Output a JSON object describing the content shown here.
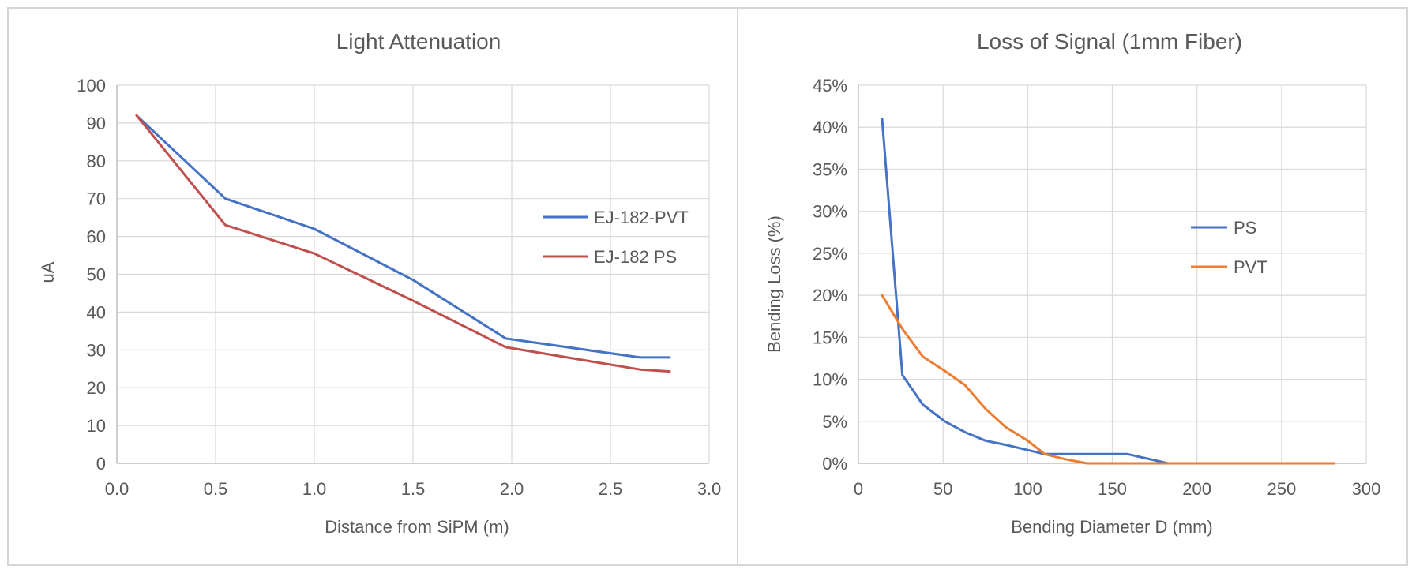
{
  "chart_data": [
    {
      "type": "line",
      "title": "Light Attenuation",
      "xlabel": "Distance from SiPM (m)",
      "ylabel": "uA",
      "xlim": [
        0,
        3
      ],
      "ylim": [
        0,
        100
      ],
      "xticks": [
        "0.0",
        "0.5",
        "1.0",
        "1.5",
        "2.0",
        "2.5",
        "3.0"
      ],
      "yticks": [
        "0",
        "10",
        "20",
        "30",
        "40",
        "50",
        "60",
        "70",
        "80",
        "90",
        "100"
      ],
      "grid": true,
      "legend": "right",
      "series": [
        {
          "name": "EJ-182-PVT",
          "color": "#4472C4",
          "points": [
            [
              0.1,
              92
            ],
            [
              0.55,
              70
            ],
            [
              1.0,
              62
            ],
            [
              1.5,
              48.5
            ],
            [
              1.97,
              33
            ],
            [
              2.65,
              28
            ],
            [
              2.8,
              28
            ]
          ]
        },
        {
          "name": "EJ-182 PS",
          "color": "#C0504D",
          "points": [
            [
              0.1,
              92
            ],
            [
              0.55,
              63
            ],
            [
              1.0,
              55.5
            ],
            [
              1.5,
              43
            ],
            [
              1.97,
              30.7
            ],
            [
              2.65,
              24.8
            ],
            [
              2.8,
              24.3
            ]
          ]
        }
      ]
    },
    {
      "type": "line",
      "title": "Loss of Signal (1mm Fiber)",
      "xlabel": "Bending Diameter D (mm)",
      "ylabel": "Bending Loss (%)",
      "xlim": [
        0,
        300
      ],
      "ylim": [
        0,
        45
      ],
      "xticks": [
        "0",
        "50",
        "100",
        "150",
        "200",
        "250",
        "300"
      ],
      "yticks": [
        "0%",
        "5%",
        "10%",
        "15%",
        "20%",
        "25%",
        "30%",
        "35%",
        "40%",
        "45%"
      ],
      "grid": true,
      "legend": "right",
      "series": [
        {
          "name": "PS",
          "color": "#4472C4",
          "points": [
            [
              14,
              41
            ],
            [
              26,
              10.5
            ],
            [
              38,
              7
            ],
            [
              51,
              5
            ],
            [
              63,
              3.7
            ],
            [
              75,
              2.7
            ],
            [
              87,
              2.2
            ],
            [
              110,
              1.1
            ],
            [
              135,
              1.1
            ],
            [
              159,
              1.1
            ],
            [
              183,
              0
            ],
            [
              208,
              0
            ],
            [
              232,
              0
            ],
            [
              256,
              0
            ],
            [
              281,
              0
            ]
          ]
        },
        {
          "name": "PVT",
          "color": "#ED7D31",
          "points": [
            [
              14,
              20
            ],
            [
              26,
              16
            ],
            [
              38,
              12.7
            ],
            [
              51,
              11
            ],
            [
              63,
              9.3
            ],
            [
              75,
              6.5
            ],
            [
              87,
              4.3
            ],
            [
              100,
              2.7
            ],
            [
              110,
              1.1
            ],
            [
              122,
              0.5
            ],
            [
              135,
              0
            ],
            [
              159,
              0
            ],
            [
              183,
              0
            ],
            [
              208,
              0
            ],
            [
              232,
              0
            ],
            [
              256,
              0
            ],
            [
              281,
              0
            ]
          ]
        }
      ]
    }
  ]
}
